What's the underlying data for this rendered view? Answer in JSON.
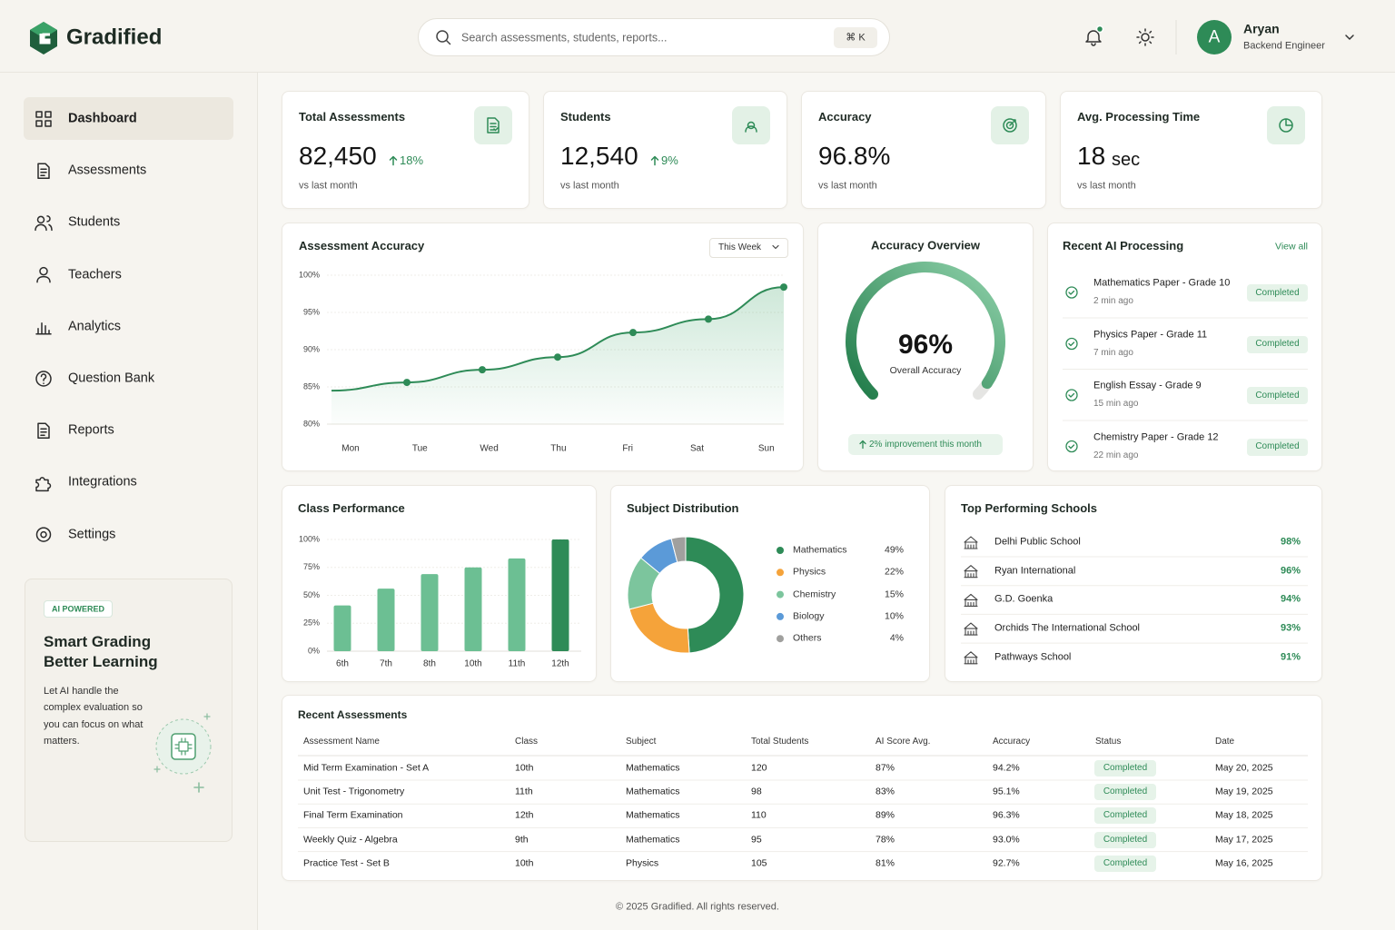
{
  "header": {
    "brand": "Gradified",
    "search_placeholder": "Search assessments, students, reports...",
    "shortcut": "⌘ K",
    "user": {
      "initial": "A",
      "name": "Aryan",
      "role": "Backend Engineer"
    }
  },
  "sidebar": {
    "nav": [
      "Dashboard",
      "Assessments",
      "Students",
      "Teachers",
      "Analytics",
      "Question Bank",
      "Reports",
      "Integrations",
      "Settings"
    ],
    "promo": {
      "badge": "AI POWERED",
      "title": [
        "Smart Grading",
        "Better Learning"
      ],
      "text": "Let AI handle the complex evaluation so you can focus on what matters."
    }
  },
  "stats": [
    {
      "title": "Total Assessments",
      "value": "82,450",
      "change": "18%",
      "note": "vs last month"
    },
    {
      "title": "Students",
      "value": "12,540",
      "change": "9%",
      "note": "vs last month"
    },
    {
      "title": "Accuracy",
      "value": "96.8%",
      "note": "vs last month"
    },
    {
      "title": "Avg. Processing Time",
      "value": "18",
      "unit": "sec",
      "note": "vs last month"
    }
  ],
  "chart_data": [
    {
      "type": "line",
      "title": "Assessment Accuracy",
      "filter": "This Week",
      "categories": [
        "Mon",
        "Tue",
        "Wed",
        "Thu",
        "Fri",
        "Sat",
        "Sun"
      ],
      "values": [
        84.5,
        85.6,
        87.3,
        89.0,
        92.3,
        94.1,
        98.4
      ],
      "color": "#2e8b57",
      "ylim": [
        80,
        100
      ],
      "yticks": [
        {
          "value": 80,
          "label": "80%"
        },
        {
          "value": 85,
          "label": "85%"
        },
        {
          "value": 90,
          "label": "90%"
        },
        {
          "value": 95,
          "label": "95%"
        },
        {
          "value": 100,
          "label": "100%"
        }
      ],
      "grid": true
    },
    {
      "type": "gauge",
      "title": "Accuracy Overview",
      "values": [
        96
      ],
      "value_labels": [
        "96%"
      ],
      "label": "Overall Accuracy",
      "annotation": "2% improvement this month",
      "ylim": [
        0,
        100
      ],
      "color": "#2e8b57",
      "track_color": "#e5e5e3"
    },
    {
      "type": "bar",
      "title": "Class Performance",
      "categories": [
        "6th",
        "7th",
        "8th",
        "10th",
        "11th",
        "12th"
      ],
      "values": [
        41,
        56,
        69,
        75,
        83,
        100
      ],
      "colors": [
        "#6cbf93",
        "#6cbf93",
        "#6cbf93",
        "#6cbf93",
        "#6cbf93",
        "#2e8b57"
      ],
      "ylim": [
        0,
        100
      ],
      "yticks": [
        {
          "value": 0,
          "label": "0%"
        },
        {
          "value": 25,
          "label": "25%"
        },
        {
          "value": 50,
          "label": "50%"
        },
        {
          "value": 75,
          "label": "75%"
        },
        {
          "value": 100,
          "label": "100%"
        }
      ],
      "grid": true
    },
    {
      "type": "donut",
      "title": "Subject Distribution",
      "categories": [
        "Mathematics",
        "Physics",
        "Chemistry",
        "Biology",
        "Others"
      ],
      "values": [
        49,
        22,
        15,
        10,
        4
      ],
      "value_labels": [
        "49%",
        "22%",
        "15%",
        "10%",
        "4%"
      ],
      "colors": [
        "#2e8b57",
        "#f5a33a",
        "#7cc59d",
        "#5b9ad8",
        "#a0a09e"
      ]
    }
  ],
  "recent_processing": {
    "title": "Recent AI Processing",
    "link": "View all",
    "items": [
      {
        "name": "Mathematics Paper - Grade 10",
        "time": "2 min ago",
        "status": "Completed"
      },
      {
        "name": "Physics Paper - Grade 11",
        "time": "7 min ago",
        "status": "Completed"
      },
      {
        "name": "English Essay - Grade 9",
        "time": "15 min ago",
        "status": "Completed"
      },
      {
        "name": "Chemistry Paper - Grade 12",
        "time": "22 min ago",
        "status": "Completed"
      }
    ]
  },
  "top_schools": {
    "title": "Top Performing Schools",
    "items": [
      {
        "name": "Delhi Public School",
        "score": "98%"
      },
      {
        "name": "Ryan International",
        "score": "96%"
      },
      {
        "name": "G.D. Goenka",
        "score": "94%"
      },
      {
        "name": "Orchids The International School",
        "score": "93%"
      },
      {
        "name": "Pathways School",
        "score": "91%"
      }
    ]
  },
  "recent_assessments": {
    "title": "Recent Assessments",
    "columns": [
      "Assessment Name",
      "Class",
      "Subject",
      "Total Students",
      "AI Score Avg.",
      "Accuracy",
      "Status",
      "Date"
    ],
    "rows": [
      [
        "Mid Term Examination - Set A",
        "10th",
        "Mathematics",
        "120",
        "87%",
        "94.2%",
        "Completed",
        "May 20, 2025"
      ],
      [
        "Unit Test - Trigonometry",
        "11th",
        "Mathematics",
        "98",
        "83%",
        "95.1%",
        "Completed",
        "May 19, 2025"
      ],
      [
        "Final Term Examination",
        "12th",
        "Mathematics",
        "110",
        "89%",
        "96.3%",
        "Completed",
        "May 18, 2025"
      ],
      [
        "Weekly Quiz - Algebra",
        "9th",
        "Mathematics",
        "95",
        "78%",
        "93.0%",
        "Completed",
        "May 17, 2025"
      ],
      [
        "Practice Test - Set B",
        "10th",
        "Physics",
        "105",
        "81%",
        "92.7%",
        "Completed",
        "May 16, 2025"
      ]
    ]
  },
  "footer": "© 2025 Gradified. All rights reserved."
}
